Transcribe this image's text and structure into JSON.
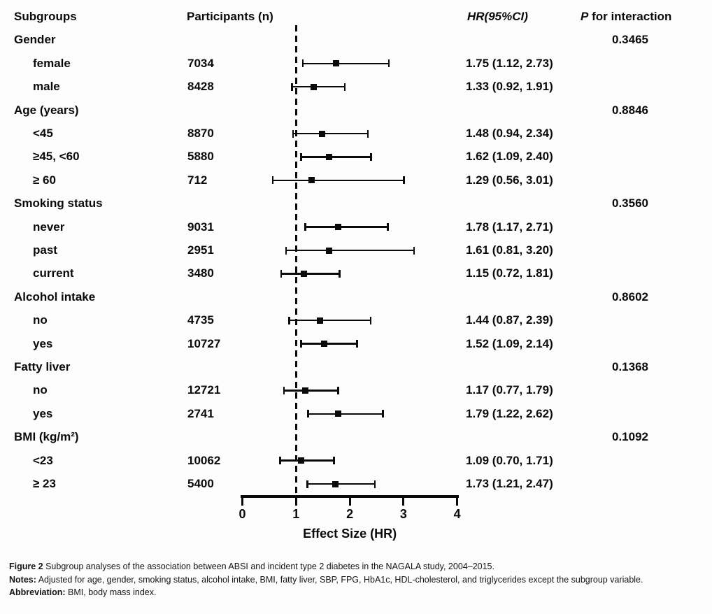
{
  "chart_data": {
    "type": "scatter",
    "variant": "forest-plot",
    "columns": [
      "Subgroups",
      "Participants (n)",
      "HR(95%CI)",
      "P for interaction"
    ],
    "p_header": {
      "italic_part": "P",
      "regular_part": " for interaction"
    },
    "xlabel": "Effect Size (HR)",
    "xlim": [
      0,
      4
    ],
    "xticks": [
      0,
      1,
      2,
      3,
      4
    ],
    "reference_line": 1,
    "grid": false,
    "groups": [
      {
        "label": "Gender",
        "p_interaction": "0.3465",
        "rows": [
          {
            "label": "female",
            "n": "7034",
            "hr": 1.75,
            "ci_low": 1.12,
            "ci_high": 2.73,
            "hr_text": "1.75 (1.12, 2.73)"
          },
          {
            "label": "male",
            "n": "8428",
            "hr": 1.33,
            "ci_low": 0.92,
            "ci_high": 1.91,
            "hr_text": "1.33 (0.92, 1.91)"
          }
        ]
      },
      {
        "label": "Age (years)",
        "p_interaction": "0.8846",
        "rows": [
          {
            "label": "<45",
            "n": "8870",
            "hr": 1.48,
            "ci_low": 0.94,
            "ci_high": 2.34,
            "hr_text": "1.48 (0.94, 2.34)"
          },
          {
            "label": "≥45, <60",
            "n": "5880",
            "hr": 1.62,
            "ci_low": 1.09,
            "ci_high": 2.4,
            "hr_text": "1.62 (1.09, 2.40)"
          },
          {
            "label": "≥ 60",
            "n": "712",
            "hr": 1.29,
            "ci_low": 0.56,
            "ci_high": 3.01,
            "hr_text": "1.29 (0.56, 3.01)"
          }
        ]
      },
      {
        "label": "Smoking status",
        "p_interaction": "0.3560",
        "rows": [
          {
            "label": "never",
            "n": "9031",
            "hr": 1.78,
            "ci_low": 1.17,
            "ci_high": 2.71,
            "hr_text": "1.78 (1.17, 2.71)"
          },
          {
            "label": "past",
            "n": "2951",
            "hr": 1.61,
            "ci_low": 0.81,
            "ci_high": 3.2,
            "hr_text": "1.61 (0.81, 3.20)"
          },
          {
            "label": "current",
            "n": "3480",
            "hr": 1.15,
            "ci_low": 0.72,
            "ci_high": 1.81,
            "hr_text": "1.15 (0.72, 1.81)"
          }
        ]
      },
      {
        "label": "Alcohol intake",
        "p_interaction": "0.8602",
        "rows": [
          {
            "label": "no",
            "n": "4735",
            "hr": 1.44,
            "ci_low": 0.87,
            "ci_high": 2.39,
            "hr_text": "1.44 (0.87, 2.39)"
          },
          {
            "label": "yes",
            "n": "10727",
            "hr": 1.52,
            "ci_low": 1.09,
            "ci_high": 2.14,
            "hr_text": "1.52 (1.09, 2.14)"
          }
        ]
      },
      {
        "label": "Fatty liver",
        "p_interaction": "0.1368",
        "rows": [
          {
            "label": "no",
            "n": "12721",
            "hr": 1.17,
            "ci_low": 0.77,
            "ci_high": 1.79,
            "hr_text": "1.17 (0.77, 1.79)"
          },
          {
            "label": "yes",
            "n": "2741",
            "hr": 1.79,
            "ci_low": 1.22,
            "ci_high": 2.62,
            "hr_text": "1.79 (1.22, 2.62)"
          }
        ]
      },
      {
        "label": "BMI (kg/m²)",
        "p_interaction": "0.1092",
        "rows": [
          {
            "label": "<23",
            "n": "10062",
            "hr": 1.09,
            "ci_low": 0.7,
            "ci_high": 1.71,
            "hr_text": "1.09 (0.70, 1.71)"
          },
          {
            "label": "≥ 23",
            "n": "5400",
            "hr": 1.73,
            "ci_low": 1.21,
            "ci_high": 2.47,
            "hr_text": "1.73 (1.21, 2.47)"
          }
        ]
      }
    ]
  },
  "caption": {
    "figure_label": "Figure 2",
    "figure_text": " Subgroup analyses of the association between ABSI and incident type 2 diabetes in the NAGALA study, 2004–2015.",
    "notes_label": "Notes:",
    "notes_text": " Adjusted for age, gender, smoking status, alcohol intake, BMI, fatty liver, SBP, FPG, HbA1c, HDL-cholesterol, and triglycerides except the subgroup variable.",
    "abbreviation_label": "Abbreviation:",
    "abbreviation_text": " BMI, body mass index."
  },
  "colors": {
    "ink": "#0a0a0a",
    "background": "#fdfdfd"
  }
}
